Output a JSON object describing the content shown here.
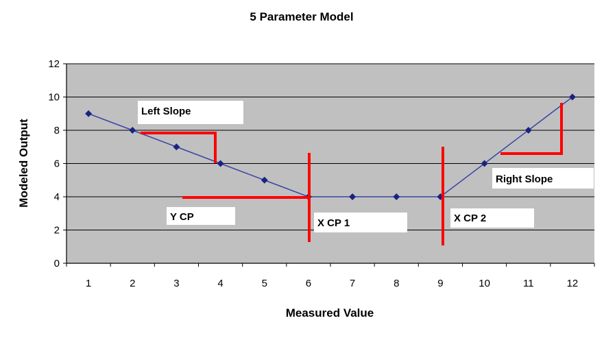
{
  "chart_data": {
    "type": "line",
    "title": "5 Parameter Model",
    "xlabel": "Measured Value",
    "ylabel": "Modeled Output",
    "categories": [
      1,
      2,
      3,
      4,
      5,
      6,
      7,
      8,
      9,
      10,
      11,
      12
    ],
    "series": [
      {
        "values": [
          9,
          8,
          7,
          6,
          5,
          4,
          4,
          4,
          4,
          6,
          8,
          10
        ]
      }
    ],
    "ylim": [
      0,
      12
    ],
    "yticks": [
      0,
      2,
      4,
      6,
      8,
      10,
      12
    ],
    "grid": true,
    "legend": "none",
    "colors": {
      "plot_background": "#c0c0c0",
      "series_line": "#3a44a8",
      "marker": "#1a237e",
      "annotation": "#ff0000",
      "label_box": "#ffffff"
    },
    "annotations": [
      {
        "id": "left-slope",
        "text": "Left Slope"
      },
      {
        "id": "y-cp",
        "text": "Y CP"
      },
      {
        "id": "x-cp-1",
        "text": "X CP 1"
      },
      {
        "id": "x-cp-2",
        "text": "X CP 2"
      },
      {
        "id": "right-slope",
        "text": "Right Slope"
      }
    ]
  }
}
